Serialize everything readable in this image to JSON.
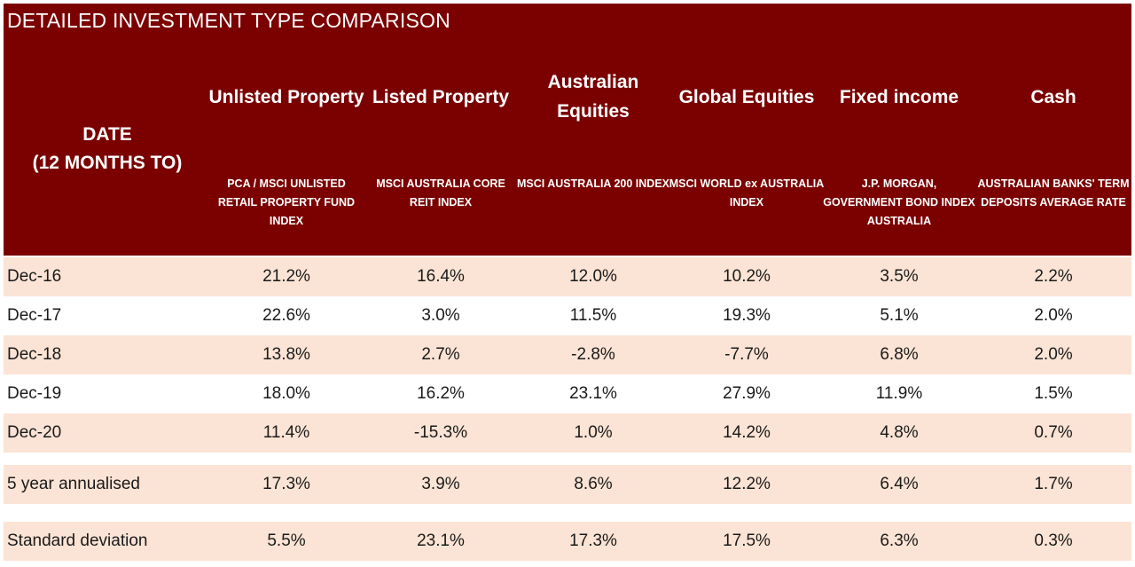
{
  "title": "DETAILED INVESTMENT TYPE COMPARISON",
  "date_header": [
    "DATE",
    "(12 MONTHS TO)"
  ],
  "colors": {
    "header_bg": "#7b0000",
    "header_text": "#ffffff",
    "row_shade": "#fbe4d5",
    "row_plain": "#ffffff"
  },
  "chart_data": {
    "type": "table",
    "title": "DETAILED INVESTMENT TYPE COMPARISON",
    "row_header": "DATE (12 MONTHS TO)",
    "columns": [
      {
        "name": "Unlisted Property",
        "index": "PCA / MSCI UNLISTED RETAIL PROPERTY FUND INDEX"
      },
      {
        "name": "Listed Property",
        "index": "MSCI AUSTRALIA CORE REIT INDEX"
      },
      {
        "name": "Australian Equities",
        "index": "MSCI AUSTRALIA 200 INDEX"
      },
      {
        "name": "Global Equities",
        "index": "MSCI WORLD ex AUSTRALIA INDEX"
      },
      {
        "name": "Fixed income",
        "index": "J.P. MORGAN, GOVERNMENT BOND INDEX AUSTRALIA"
      },
      {
        "name": "Cash",
        "index": "AUSTRALIAN BANKS' TERM DEPOSITS AVERAGE RATE"
      }
    ],
    "rows": [
      {
        "label": "Dec-16",
        "values": [
          "21.2%",
          "16.4%",
          "12.0%",
          "10.2%",
          "3.5%",
          "2.2%"
        ]
      },
      {
        "label": "Dec-17",
        "values": [
          "22.6%",
          "3.0%",
          "11.5%",
          "19.3%",
          "5.1%",
          "2.0%"
        ]
      },
      {
        "label": "Dec-18",
        "values": [
          "13.8%",
          "2.7%",
          "-2.8%",
          "-7.7%",
          "6.8%",
          "2.0%"
        ]
      },
      {
        "label": "Dec-19",
        "values": [
          "18.0%",
          "16.2%",
          "23.1%",
          "27.9%",
          "11.9%",
          "1.5%"
        ]
      },
      {
        "label": "Dec-20",
        "values": [
          "11.4%",
          "-15.3%",
          "1.0%",
          "14.2%",
          "4.8%",
          "0.7%"
        ]
      },
      {
        "label": "5 year annualised",
        "values": [
          "17.3%",
          "3.9%",
          "8.6%",
          "12.2%",
          "6.4%",
          "1.7%"
        ]
      },
      {
        "label": "Standard deviation",
        "values": [
          "5.5%",
          "23.1%",
          "17.3%",
          "17.5%",
          "6.3%",
          "0.3%"
        ]
      }
    ]
  }
}
